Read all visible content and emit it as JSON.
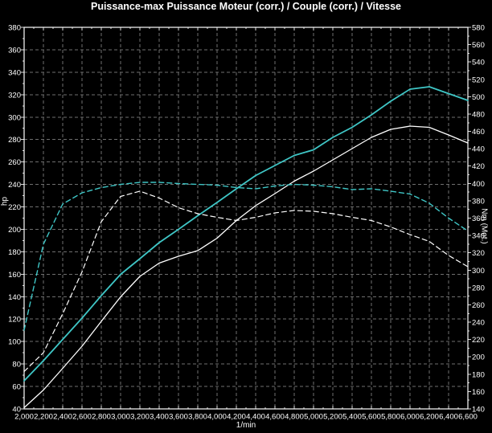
{
  "title": "Puissance-max Puissance Moteur (corr.) / Couple (corr.) / Vitesse",
  "chart_data": {
    "type": "line",
    "background": "#000000",
    "frame_color": "#ffffff",
    "text_color": "#ffffff",
    "tick_color": "#d9d9d9",
    "grid": {
      "visible": true,
      "color": "#6f6f6f",
      "dash": "4 3"
    },
    "xlabel": "1/min",
    "x_min": 2000,
    "x_max": 6600,
    "x_step": 200,
    "x": [
      2000,
      2200,
      2400,
      2600,
      2800,
      3000,
      3200,
      3400,
      3600,
      3800,
      4000,
      4200,
      4400,
      4600,
      4800,
      5000,
      5200,
      5400,
      5600,
      5800,
      6000,
      6200,
      6400,
      6600
    ],
    "x_tick_labels": [
      "2,000",
      "2,200",
      "2,400",
      "2,600",
      "2,800",
      "3,000",
      "3,200",
      "3,400",
      "3,600",
      "3,800",
      "4,000",
      "4,200",
      "4,400",
      "4,600",
      "4,800",
      "5,000",
      "5,200",
      "5,400",
      "5,600",
      "5,800",
      "6,000",
      "6,200",
      "6,400",
      "6,600"
    ],
    "left_axis": {
      "label": "hp",
      "min": 40,
      "max": 380,
      "step": 20,
      "tick_labels": [
        "380",
        "360",
        "340",
        "320",
        "300",
        "280",
        "260",
        "240",
        "220",
        "200",
        "180",
        "160",
        "140",
        "120",
        "100",
        "80",
        "60",
        "40"
      ]
    },
    "right_axis": {
      "label": "Nm (Mot.)",
      "min": 140,
      "max": 580,
      "step": 20,
      "tick_labels": [
        "580",
        "560",
        "540",
        "520",
        "500",
        "480",
        "460",
        "440",
        "420",
        "400",
        "380",
        "360",
        "340",
        "320",
        "300",
        "280",
        "260",
        "240",
        "220",
        "200",
        "180",
        "160",
        "140"
      ]
    },
    "series": [
      {
        "id": "puissance-corr-tuned",
        "description": "Puissance moteur (corr.) - courbe cyan pleine",
        "unit": "hp",
        "axis": "left",
        "style": "solid",
        "color": "#3fc6c6",
        "width": 1.8,
        "values": [
          65,
          83,
          102,
          121,
          141,
          160,
          174,
          188,
          200,
          212,
          224,
          236,
          248,
          257,
          266,
          271,
          282,
          291,
          302,
          314,
          325,
          327,
          321,
          315
        ]
      },
      {
        "id": "puissance-corr-origine",
        "description": "Puissance moteur (corr.) - courbe blanche pleine",
        "unit": "hp",
        "axis": "left",
        "style": "solid",
        "color": "#ffffff",
        "width": 1.3,
        "values": [
          41,
          57,
          76,
          96,
          118,
          140,
          158,
          170,
          176,
          181,
          192,
          208,
          221,
          232,
          243,
          252,
          262,
          272,
          282,
          289,
          292,
          291,
          284,
          277
        ]
      },
      {
        "id": "couple-corr-tuned",
        "description": "Couple (corr.) - courbe cyan pointillée",
        "unit": "Nm",
        "axis": "right",
        "style": "dashed",
        "color": "#3fc6c6",
        "width": 1.4,
        "values": [
          231,
          330,
          376,
          389,
          395,
          399,
          401,
          401,
          400,
          399,
          398,
          395,
          394,
          397,
          399,
          398,
          396,
          393,
          394,
          391,
          388,
          377,
          360,
          345
        ]
      },
      {
        "id": "couple-corr-origine",
        "description": "Couple (corr.) - courbe blanche pointillée",
        "unit": "Nm",
        "axis": "right",
        "style": "dashed",
        "color": "#ffffff",
        "width": 1.2,
        "values": [
          183,
          205,
          250,
          298,
          356,
          385,
          391,
          383,
          372,
          365,
          361,
          357,
          361,
          366,
          369,
          368,
          365,
          361,
          357,
          350,
          341,
          333,
          317,
          304
        ]
      }
    ]
  }
}
